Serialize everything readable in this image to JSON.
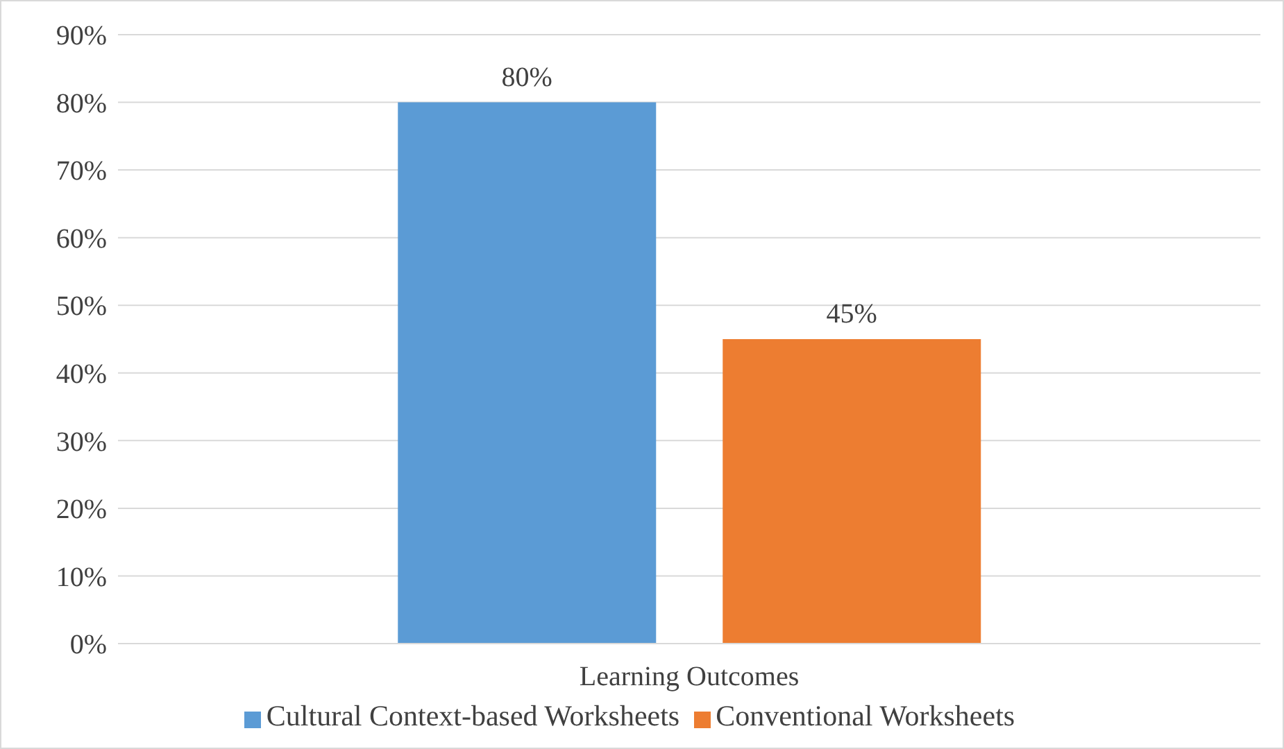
{
  "chart_data": {
    "type": "bar",
    "categories": [
      "Learning Outcomes"
    ],
    "series": [
      {
        "name": "Cultural Context-based Worksheets",
        "color": "#5b9bd5",
        "values": [
          80
        ],
        "value_labels": [
          "80%"
        ]
      },
      {
        "name": "Conventional Worksheets",
        "color": "#ed7d31",
        "values": [
          45
        ],
        "value_labels": [
          "45%"
        ]
      }
    ],
    "ylim": [
      0,
      90
    ],
    "yticks": [
      {
        "value": 0,
        "label": "0%"
      },
      {
        "value": 10,
        "label": "10%"
      },
      {
        "value": 20,
        "label": "20%"
      },
      {
        "value": 30,
        "label": "30%"
      },
      {
        "value": 40,
        "label": "40%"
      },
      {
        "value": 50,
        "label": "50%"
      },
      {
        "value": 60,
        "label": "60%"
      },
      {
        "value": 70,
        "label": "70%"
      },
      {
        "value": 80,
        "label": "80%"
      },
      {
        "value": 90,
        "label": "90%"
      }
    ],
    "grid": "y",
    "legend": "bottom"
  }
}
